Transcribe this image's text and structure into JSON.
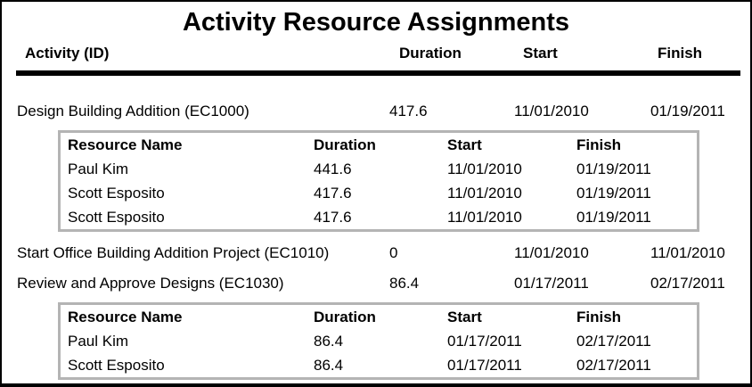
{
  "report": {
    "title": "Activity Resource Assignments",
    "columns": [
      "Activity (ID)",
      "Duration",
      "Start",
      "Finish"
    ],
    "nested_columns": [
      "Resource Name",
      "Duration",
      "Start",
      "Finish"
    ],
    "activities": [
      {
        "name": "Design Building Addition (EC1000)",
        "duration": "417.6",
        "start": "11/01/2010",
        "finish": "01/19/2011",
        "resources": [
          {
            "name": "Paul Kim",
            "duration": "441.6",
            "start": "11/01/2010",
            "finish": "01/19/2011"
          },
          {
            "name": "Scott Esposito",
            "duration": "417.6",
            "start": "11/01/2010",
            "finish": "01/19/2011"
          },
          {
            "name": "Scott Esposito",
            "duration": "417.6",
            "start": "11/01/2010",
            "finish": "01/19/2011"
          }
        ]
      },
      {
        "name": "Start Office Building Addition Project (EC1010)",
        "duration": "0",
        "start": "11/01/2010",
        "finish": "11/01/2010",
        "resources": []
      },
      {
        "name": "Review and Approve Designs (EC1030)",
        "duration": "86.4",
        "start": "01/17/2011",
        "finish": "02/17/2011",
        "resources": [
          {
            "name": "Paul Kim",
            "duration": "86.4",
            "start": "01/17/2011",
            "finish": "02/17/2011"
          },
          {
            "name": "Scott Esposito",
            "duration": "86.4",
            "start": "01/17/2011",
            "finish": "02/17/2011"
          }
        ]
      }
    ]
  },
  "colors": {
    "header_rule": "#000000",
    "nested_table_border": "#b4b4b4",
    "text": "#000000",
    "background": "#ffffff"
  }
}
